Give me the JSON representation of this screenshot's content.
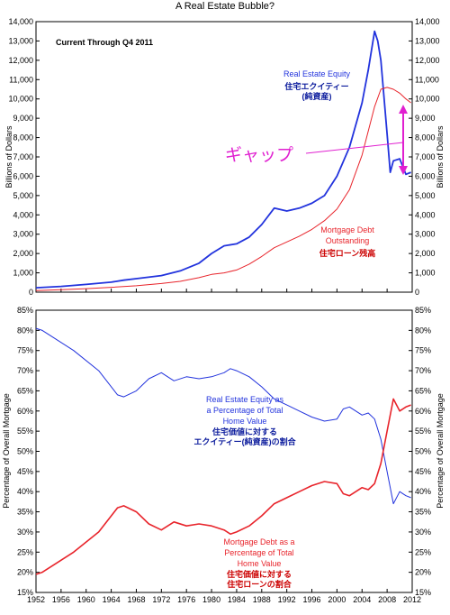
{
  "title": "A Real Estate Bubble?",
  "colors": {
    "equity": "#2233dd",
    "debt": "#e8242b",
    "annotation": "#e020d0",
    "jp_equity": "#0a1a9c",
    "jp_debt": "#cc0000"
  },
  "chart_data": [
    {
      "type": "line",
      "title": "A Real Estate Bubble?",
      "note": "Current Through Q4 2011",
      "ylabel_left": "Billions of Dollars",
      "ylabel_right": "Billions of Dollars",
      "ylim": [
        0,
        14000
      ],
      "yticks": [
        "0",
        "1,000",
        "2,000",
        "3,000",
        "4,000",
        "5,000",
        "6,000",
        "7,000",
        "8,000",
        "9,000",
        "10,000",
        "11,000",
        "12,000",
        "13,000",
        "14,000"
      ],
      "grid": false,
      "series": [
        {
          "name": "Real Estate Equity",
          "name_jp_1": "住宅エクイティー",
          "name_jp_2": "(純資産)",
          "x": [
            1952,
            1956,
            1960,
            1964,
            1966,
            1968,
            1972,
            1975,
            1978,
            1980,
            1982,
            1984,
            1986,
            1988,
            1990,
            1992,
            1994,
            1996,
            1998,
            2000,
            2002,
            2004,
            2005,
            2006,
            2006.5,
            2007,
            2008,
            2008.5,
            2009,
            2010,
            2010.5,
            2011,
            2011.8
          ],
          "values": [
            230,
            300,
            400,
            520,
            620,
            700,
            860,
            1100,
            1500,
            2000,
            2400,
            2500,
            2850,
            3500,
            4350,
            4200,
            4350,
            4600,
            5000,
            6000,
            7500,
            9800,
            11500,
            13500,
            13000,
            12000,
            8200,
            6200,
            6800,
            6900,
            6500,
            6100,
            6200
          ]
        },
        {
          "name": "Mortgage Debt Outstanding",
          "name_line1": "Mortgage Debt",
          "name_line2": "Outstanding",
          "name_jp": "住宅ローン残高",
          "x": [
            1952,
            1956,
            1960,
            1964,
            1968,
            1972,
            1975,
            1978,
            1980,
            1982,
            1984,
            1986,
            1988,
            1990,
            1992,
            1994,
            1996,
            1998,
            2000,
            2002,
            2004,
            2006,
            2007,
            2008,
            2009,
            2010,
            2011,
            2011.8
          ],
          "values": [
            80,
            130,
            180,
            250,
            330,
            450,
            560,
            750,
            920,
            1000,
            1150,
            1450,
            1850,
            2300,
            2600,
            2900,
            3250,
            3700,
            4300,
            5300,
            7100,
            9600,
            10500,
            10600,
            10500,
            10300,
            10000,
            9800
          ]
        }
      ],
      "annotation": "ギャップ"
    },
    {
      "type": "line",
      "ylabel_left": "Percentage of Overall Mortgage",
      "ylabel_right": "Percentage of Overall Mortgage",
      "ylim": [
        15,
        85
      ],
      "yticks": [
        "15%",
        "20%",
        "25%",
        "30%",
        "35%",
        "40%",
        "45%",
        "50%",
        "55%",
        "60%",
        "65%",
        "70%",
        "75%",
        "80%",
        "85%"
      ],
      "xticks": [
        "1952",
        "1956",
        "1960",
        "1964",
        "1968",
        "1972",
        "1976",
        "1980",
        "1984",
        "1988",
        "1992",
        "1996",
        "2000",
        "2004",
        "2008",
        "2012"
      ],
      "grid": false,
      "series": [
        {
          "name": "Real Estate Equity as a Percentage of Total Home Value",
          "name_lines": [
            "Real Estate Equity as",
            "a Percentage of Total",
            "Home Value"
          ],
          "name_jp": [
            "住宅価値に対する",
            "エクイティー(純資産)の割合"
          ],
          "x": [
            1952,
            1953,
            1955,
            1958,
            1962,
            1965,
            1966,
            1968,
            1970,
            1972,
            1974,
            1976,
            1978,
            1980,
            1982,
            1983,
            1984,
            1986,
            1988,
            1990,
            1992,
            1994,
            1996,
            1998,
            2000,
            2001,
            2002,
            2003,
            2004,
            2005,
            2006,
            2007,
            2008,
            2009,
            2010,
            2011,
            2011.8
          ],
          "values": [
            80.5,
            80,
            78,
            75,
            70,
            64,
            63.5,
            65,
            68,
            69.5,
            67.5,
            68.5,
            68,
            68.5,
            69.5,
            70.5,
            70,
            68.5,
            66,
            63,
            61.5,
            60,
            58.5,
            57.5,
            58,
            60.5,
            61,
            60,
            59,
            59.5,
            58,
            53,
            45,
            37,
            40,
            39,
            38.5
          ]
        },
        {
          "name": "Mortgage Debt as a Percentage of Total Home Value",
          "name_lines": [
            "Mortgage Debt as a",
            "Percentage of Total",
            "Home Value"
          ],
          "name_jp": [
            "住宅価値に対する",
            "住宅ローンの割合"
          ],
          "x": [
            1952,
            1953,
            1955,
            1958,
            1962,
            1965,
            1966,
            1968,
            1970,
            1972,
            1974,
            1976,
            1978,
            1980,
            1982,
            1983,
            1984,
            1986,
            1988,
            1990,
            1992,
            1994,
            1996,
            1998,
            2000,
            2001,
            2002,
            2003,
            2004,
            2005,
            2006,
            2007,
            2008,
            2009,
            2010,
            2011,
            2011.8
          ],
          "values": [
            19.5,
            20,
            22,
            25,
            30,
            36,
            36.5,
            35,
            32,
            30.5,
            32.5,
            31.5,
            32,
            31.5,
            30.5,
            29.5,
            30,
            31.5,
            34,
            37,
            38.5,
            40,
            41.5,
            42.5,
            42,
            39.5,
            39,
            40,
            41,
            40.5,
            42,
            47,
            55,
            63,
            60,
            61,
            61.5
          ]
        }
      ]
    }
  ]
}
